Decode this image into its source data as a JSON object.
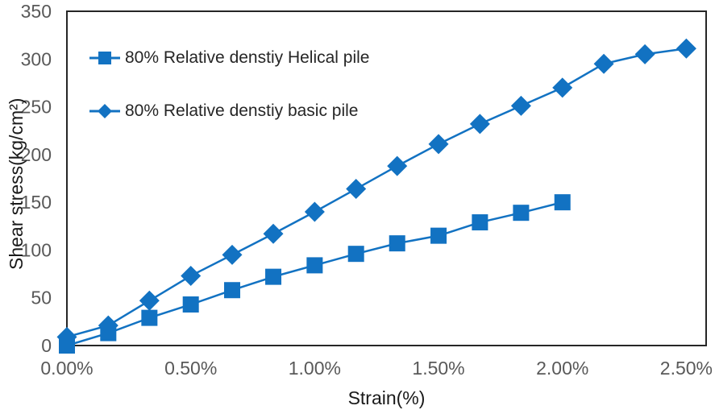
{
  "chart_data": {
    "type": "line",
    "x": [
      0,
      0.167,
      0.333,
      0.5,
      0.667,
      0.833,
      1.0,
      1.167,
      1.333,
      1.5,
      1.667,
      1.833,
      2.0,
      2.167,
      2.333,
      2.5
    ],
    "series": [
      {
        "name": "80% Relative denstiy Helical pile",
        "marker": "square",
        "values": [
          0,
          13,
          29,
          43,
          58,
          72,
          84,
          96,
          107,
          115,
          129,
          139,
          150
        ]
      },
      {
        "name": "80% Relative denstiy basic pile",
        "marker": "diamond",
        "values": [
          9,
          21,
          47,
          73,
          95,
          117,
          140,
          164,
          188,
          211,
          232,
          251,
          270,
          295,
          305,
          311
        ]
      }
    ],
    "title": "",
    "xlabel": "Strain(%)",
    "ylabel": "Shear stress(kg/cm²)",
    "xlim": [
      0,
      2.58
    ],
    "ylim": [
      0,
      350
    ],
    "x_tick_labels": [
      "0.00%",
      "0.50%",
      "1.00%",
      "1.50%",
      "2.00%",
      "2.50%"
    ],
    "x_tick_values": [
      0,
      0.5,
      1.0,
      1.5,
      2.0,
      2.5
    ],
    "y_ticks": [
      0,
      50,
      100,
      150,
      200,
      250,
      300,
      350
    ],
    "grid": false,
    "legend_position": "inside-top-left",
    "colors": {
      "accent": "#1272C2",
      "tick_label": "#595959",
      "axis": "#262626"
    }
  }
}
